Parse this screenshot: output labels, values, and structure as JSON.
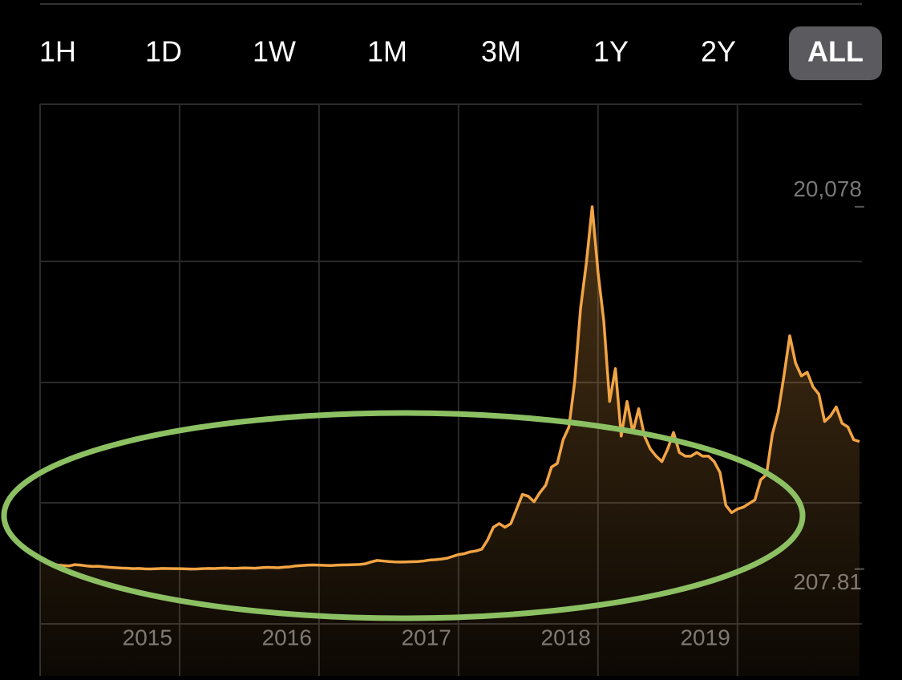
{
  "tabs": [
    "1H",
    "1D",
    "1W",
    "1M",
    "3M",
    "1Y",
    "2Y",
    "ALL"
  ],
  "active_tab": 7,
  "chart_data": {
    "type": "line",
    "categories": [
      null,
      null,
      null,
      null,
      null,
      null,
      null,
      null,
      null,
      null,
      null,
      null,
      null,
      null,
      null,
      null,
      null,
      null,
      null,
      null,
      null,
      null,
      null,
      null,
      "2015",
      null,
      null,
      null,
      null,
      null,
      null,
      null,
      null,
      null,
      null,
      null,
      null,
      null,
      null,
      null,
      null,
      null,
      null,
      null,
      null,
      null,
      null,
      null,
      "2016",
      null,
      null,
      null,
      null,
      null,
      null,
      null,
      null,
      null,
      null,
      null,
      null,
      null,
      null,
      null,
      null,
      null,
      null,
      null,
      null,
      null,
      null,
      null,
      "2017",
      null,
      null,
      null,
      null,
      null,
      null,
      null,
      null,
      null,
      null,
      null,
      null,
      null,
      null,
      null,
      null,
      null,
      null,
      null,
      null,
      null,
      null,
      null,
      "2018",
      null,
      null,
      null,
      null,
      null,
      null,
      null,
      null,
      null,
      null,
      null,
      null,
      null,
      null,
      null,
      null,
      null,
      null,
      null,
      null,
      null,
      null,
      null,
      "2019",
      null,
      null,
      null,
      null,
      null,
      null,
      null,
      null,
      null,
      null,
      null,
      null,
      null,
      null,
      null,
      null,
      null,
      null,
      null,
      null,
      null
    ],
    "values": [
      870,
      700,
      520,
      430,
      400,
      380,
      450,
      420,
      380,
      350,
      360,
      330,
      300,
      280,
      260,
      250,
      230,
      240,
      220,
      215,
      225,
      240,
      235,
      230,
      230,
      220,
      207.81,
      215,
      230,
      240,
      235,
      250,
      260,
      240,
      250,
      270,
      260,
      250,
      280,
      300,
      290,
      280,
      310,
      330,
      380,
      400,
      420,
      430,
      420,
      410,
      400,
      420,
      430,
      440,
      450,
      460,
      500,
      600,
      680,
      650,
      620,
      600,
      590,
      600,
      610,
      620,
      650,
      700,
      720,
      750,
      800,
      900,
      1000,
      1050,
      1150,
      1200,
      1300,
      1800,
      2500,
      2700,
      2500,
      2700,
      3500,
      4300,
      4200,
      3900,
      4400,
      4800,
      5800,
      6000,
      7300,
      8000,
      10500,
      14500,
      17000,
      20078,
      16500,
      13800,
      9400,
      11200,
      7500,
      9400,
      7700,
      9000,
      7500,
      6800,
      6400,
      6100,
      6800,
      7700,
      6600,
      6400,
      6400,
      6600,
      6400,
      6400,
      6100,
      5500,
      3700,
      3300,
      3500,
      3600,
      3800,
      4000,
      5100,
      5400,
      7600,
      8800,
      10800,
      13000,
      11500,
      10800,
      11000,
      10200,
      9800,
      8300,
      8600,
      9100,
      8200,
      8000,
      7300,
      7200
    ],
    "color": "#f2a444",
    "ylim": [
      -2800,
      25700
    ],
    "yticks": [
      {
        "value": 20078,
        "label": "20,078"
      },
      207.81
    ]
  }
}
